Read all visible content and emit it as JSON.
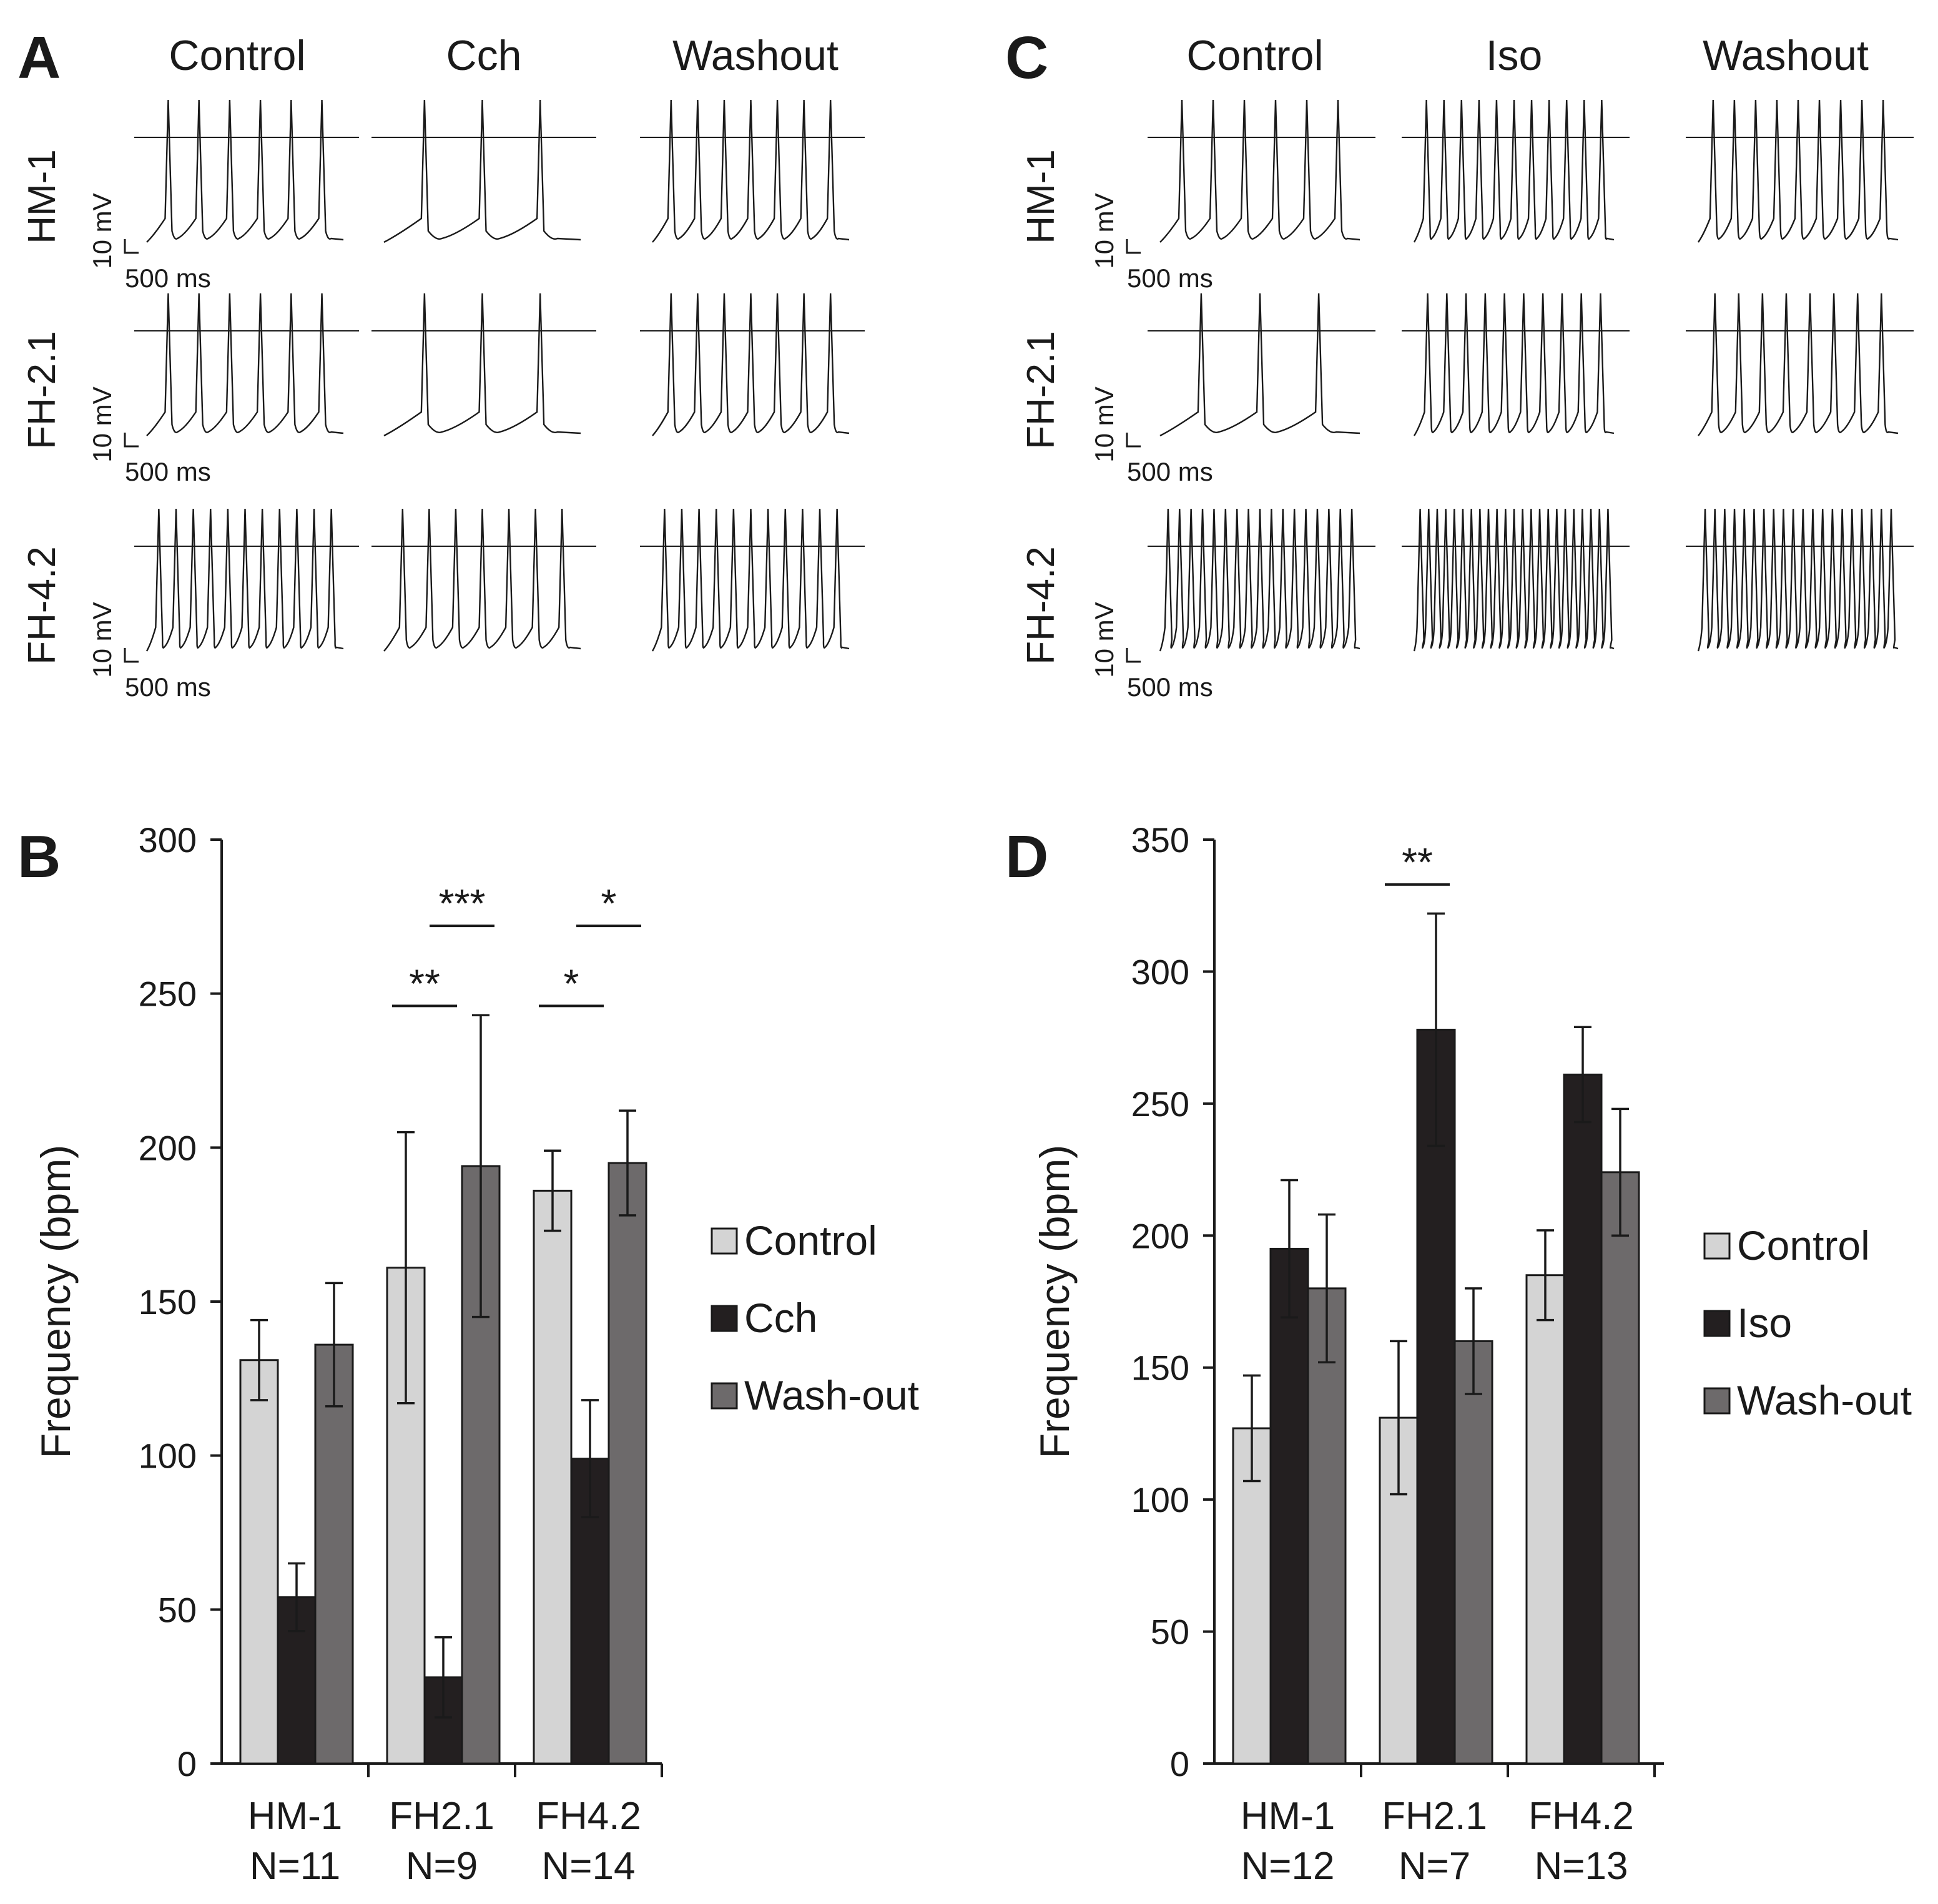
{
  "traces": [
    {
      "letter": "A",
      "columns": [
        "Control",
        "Cch",
        "Washout"
      ],
      "rows": [
        {
          "label": "HM-1",
          "spikes": [
            6,
            3,
            7
          ],
          "scale_mv": "10 mV",
          "scale_ms": "500 ms"
        },
        {
          "label": "FH-2.1",
          "spikes": [
            6,
            3,
            7
          ],
          "scale_mv": "10 mV",
          "scale_ms": "500 ms"
        },
        {
          "label": "FH-4.2",
          "spikes": [
            11,
            7,
            11
          ],
          "scale_mv": "10 mV",
          "scale_ms": "500 ms"
        }
      ]
    },
    {
      "letter": "C",
      "columns": [
        "Control",
        "Iso",
        "Washout"
      ],
      "rows": [
        {
          "label": "HM-1",
          "spikes": [
            6,
            11,
            9
          ],
          "scale_mv": "10 mV",
          "scale_ms": "500 ms"
        },
        {
          "label": "FH-2.1",
          "spikes": [
            3,
            10,
            8
          ],
          "scale_mv": "10 mV",
          "scale_ms": "500 ms"
        },
        {
          "label": "FH-4.2",
          "spikes": [
            17,
            23,
            20
          ],
          "scale_mv": "10 mV",
          "scale_ms": "500 ms"
        }
      ]
    }
  ],
  "chart_data": [
    {
      "letter": "B",
      "type": "bar",
      "ylabel": "Frequency (bpm)",
      "ylim": [
        0,
        300
      ],
      "yticks": [
        0,
        50,
        100,
        150,
        200,
        250,
        300
      ],
      "categories": [
        {
          "name": "HM-1",
          "n": "N=11"
        },
        {
          "name": "FH2.1",
          "n": "N=9"
        },
        {
          "name": "FH4.2",
          "n": "N=14"
        }
      ],
      "series": [
        {
          "name": "Control",
          "color": "#d4d4d4",
          "values": [
            131,
            161,
            186
          ],
          "errors": [
            13,
            44,
            13
          ]
        },
        {
          "name": "Cch",
          "color": "#231f20",
          "values": [
            54,
            28,
            99
          ],
          "errors": [
            11,
            13,
            19
          ]
        },
        {
          "name": "Wash-out",
          "color": "#6d6a6b",
          "values": [
            136,
            194,
            195
          ],
          "errors": [
            20,
            49,
            17
          ]
        }
      ],
      "significance": [
        {
          "label": "**",
          "cat": 1,
          "from": 0,
          "to": 1,
          "y": 246
        },
        {
          "label": "***",
          "cat": 1,
          "from": 1,
          "to": 2,
          "y": 272
        },
        {
          "label": "*",
          "cat": 2,
          "from": 0,
          "to": 1,
          "y": 246
        },
        {
          "label": "*",
          "cat": 2,
          "from": 1,
          "to": 2,
          "y": 272
        }
      ]
    },
    {
      "letter": "D",
      "type": "bar",
      "ylabel": "Frequency (bpm)",
      "ylim": [
        0,
        350
      ],
      "yticks": [
        0,
        50,
        100,
        150,
        200,
        250,
        300,
        350
      ],
      "categories": [
        {
          "name": "HM-1",
          "n": "N=12"
        },
        {
          "name": "FH2.1",
          "n": "N=7"
        },
        {
          "name": "FH4.2",
          "n": "N=13"
        }
      ],
      "series": [
        {
          "name": "Control",
          "color": "#d4d4d4",
          "values": [
            127,
            131,
            185
          ],
          "errors": [
            20,
            29,
            17
          ]
        },
        {
          "name": "Iso",
          "color": "#231f20",
          "values": [
            195,
            278,
            261
          ],
          "errors": [
            26,
            44,
            18
          ]
        },
        {
          "name": "Wash-out",
          "color": "#6d6a6b",
          "values": [
            180,
            160,
            224
          ],
          "errors": [
            28,
            20,
            24
          ]
        }
      ],
      "significance": [
        {
          "label": "**",
          "cat": 1,
          "from": 0,
          "to": 1,
          "y": 333
        }
      ]
    }
  ]
}
